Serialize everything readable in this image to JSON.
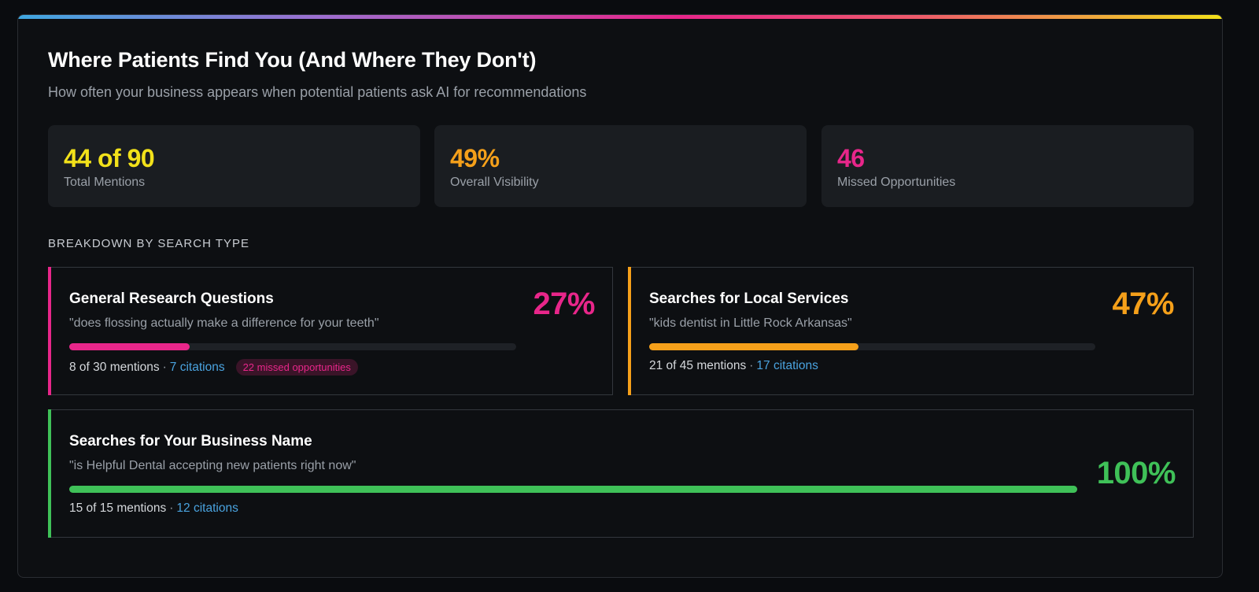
{
  "header": {
    "title": "Where Patients Find You (And Where They Don't)",
    "subtitle": "How often your business appears when potential patients ask AI for recommendations"
  },
  "stats": [
    {
      "value": "44 of 90",
      "label": "Total Mentions",
      "color": "#f2e11a"
    },
    {
      "value": "49%",
      "label": "Overall Visibility",
      "color": "#f5a01a"
    },
    {
      "value": "46",
      "label": "Missed Opportunities",
      "color": "#e8268a"
    }
  ],
  "breakdown": {
    "heading": "BREAKDOWN BY SEARCH TYPE",
    "cards": [
      {
        "title": "General Research Questions",
        "query": "\"does flossing actually make a difference for your teeth\"",
        "percent_label": "27%",
        "progress": 0.27,
        "mentions": "8 of 30 mentions",
        "separator": "·",
        "citations": "7 citations",
        "missed": "22 missed opportunities",
        "color": "#e8268a"
      },
      {
        "title": "Searches for Local Services",
        "query": "\"kids dentist in Little Rock Arkansas\"",
        "percent_label": "47%",
        "progress": 0.47,
        "mentions": "21 of 45 mentions",
        "separator": "·",
        "citations": "17 citations",
        "color": "#f5a01a"
      },
      {
        "title": "Searches for Your Business Name",
        "query": "\"is Helpful Dental accepting new patients right now\"",
        "percent_label": "100%",
        "progress": 1.0,
        "mentions": "15 of 15 mentions",
        "separator": "·",
        "citations": "12 citations",
        "color": "#3fc158"
      }
    ]
  }
}
